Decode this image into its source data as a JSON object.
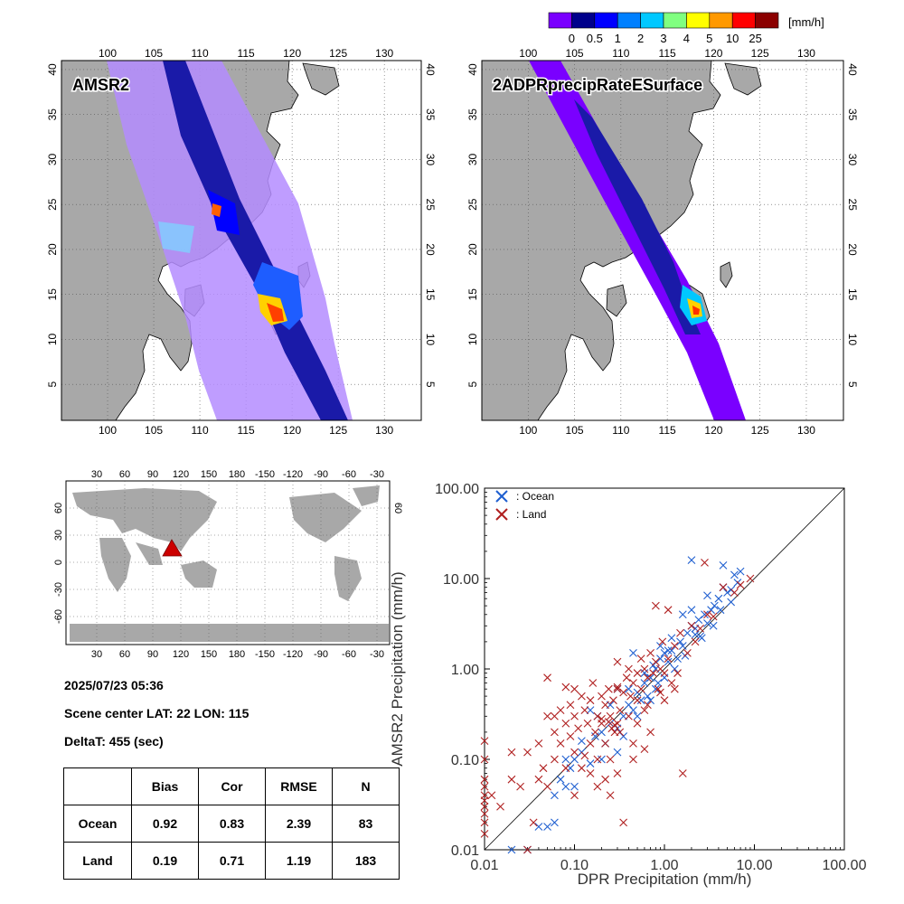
{
  "colorbar": {
    "unit": "[mm/h]",
    "colors": [
      "#7a00ff",
      "#00008b",
      "#0000ff",
      "#0080ff",
      "#00c8ff",
      "#80ff80",
      "#ffff00",
      "#ff9900",
      "#ff0000",
      "#8b0000"
    ],
    "ticks": [
      "0",
      "0.5",
      "1",
      "2",
      "3",
      "4",
      "5",
      "10",
      "25"
    ]
  },
  "maps": {
    "lon_ticks": [
      "100",
      "105",
      "110",
      "115",
      "120",
      "125",
      "130"
    ],
    "lat_ticks": [
      "5",
      "10",
      "15",
      "20",
      "25",
      "30",
      "35",
      "40"
    ],
    "left_label": "AMSR2",
    "right_label": "2ADPRprecipRateESurface",
    "land_color": "#a8a8a8"
  },
  "world": {
    "top_ticks": [
      "30",
      "60",
      "90",
      "120",
      "150",
      "180",
      "-150",
      "-120",
      "-90",
      "-60",
      "-30"
    ],
    "bottom_ticks": [
      "30",
      "60",
      "90",
      "120",
      "150",
      "180",
      "-150",
      "-120",
      "-90",
      "-60",
      "-30"
    ],
    "lat_ticks": [
      "60",
      "30",
      "0",
      "-30",
      "-60"
    ],
    "right_lat_ticks": [
      "60"
    ],
    "marker_color": "#cc0000"
  },
  "scene": {
    "date": "2025/07/23 05:36",
    "center": "Scene center LAT: 22   LON: 115",
    "deltat": "DeltaT:  455 (sec)"
  },
  "stats": {
    "headers": [
      "",
      "Bias",
      "Cor",
      "RMSE",
      "N"
    ],
    "rows": [
      [
        "Ocean",
        "0.92",
        "0.83",
        "2.39",
        "83"
      ],
      [
        "Land",
        "0.19",
        "0.71",
        "1.19",
        "183"
      ]
    ]
  },
  "chart_data": {
    "type": "scatter",
    "xscale": "log",
    "yscale": "log",
    "xlim": [
      0.01,
      100
    ],
    "ylim": [
      0.01,
      100
    ],
    "xlabel": "DPR Precipitation (mm/h)",
    "ylabel": "AMSR2 Precipitation (mm/h)",
    "x_ticks": [
      "0.01",
      "0.10",
      "1.00",
      "10.00",
      "100.00"
    ],
    "y_ticks": [
      "0.01",
      "0.10",
      "1.00",
      "10.00",
      "100.00"
    ],
    "legend_placement": "top-left",
    "series": [
      {
        "name": ": Ocean",
        "color": "#1f5fd0",
        "points": [
          [
            0.02,
            0.01
          ],
          [
            0.03,
            0.01
          ],
          [
            0.04,
            0.018
          ],
          [
            0.05,
            0.018
          ],
          [
            0.06,
            0.04
          ],
          [
            0.07,
            0.06
          ],
          [
            0.08,
            0.05
          ],
          [
            0.09,
            0.08
          ],
          [
            0.1,
            0.1
          ],
          [
            0.12,
            0.12
          ],
          [
            0.15,
            0.09
          ],
          [
            0.17,
            0.18
          ],
          [
            0.2,
            0.2
          ],
          [
            0.22,
            0.15
          ],
          [
            0.25,
            0.25
          ],
          [
            0.3,
            0.22
          ],
          [
            0.35,
            0.3
          ],
          [
            0.4,
            0.4
          ],
          [
            0.45,
            0.35
          ],
          [
            0.5,
            0.55
          ],
          [
            0.55,
            0.45
          ],
          [
            0.6,
            0.7
          ],
          [
            0.65,
            0.5
          ],
          [
            0.7,
            0.8
          ],
          [
            0.75,
            1.1
          ],
          [
            0.8,
            1.0
          ],
          [
            0.85,
            0.7
          ],
          [
            0.9,
            1.3
          ],
          [
            1.0,
            1.5
          ],
          [
            1.1,
            1.2
          ],
          [
            1.2,
            1.6
          ],
          [
            1.3,
            1.0
          ],
          [
            1.5,
            2.0
          ],
          [
            1.6,
            1.8
          ],
          [
            1.8,
            2.5
          ],
          [
            2.0,
            3.0
          ],
          [
            2.2,
            2.4
          ],
          [
            2.4,
            3.5
          ],
          [
            2.6,
            2.2
          ],
          [
            2.8,
            4.0
          ],
          [
            3.0,
            3.2
          ],
          [
            3.3,
            4.5
          ],
          [
            3.6,
            5.0
          ],
          [
            4.0,
            6.0
          ],
          [
            4.5,
            8.0
          ],
          [
            5.0,
            7.0
          ],
          [
            5.5,
            5.5
          ],
          [
            6.0,
            11.0
          ],
          [
            7.0,
            12.0
          ],
          [
            4.5,
            14.0
          ],
          [
            2.0,
            16.0
          ],
          [
            3.0,
            6.5
          ],
          [
            2.0,
            4.5
          ],
          [
            1.6,
            4.0
          ],
          [
            2.5,
            2.3
          ],
          [
            1.2,
            2.2
          ],
          [
            0.9,
            1.8
          ],
          [
            0.6,
            0.9
          ],
          [
            0.4,
            0.6
          ],
          [
            0.3,
            0.12
          ],
          [
            0.25,
            0.4
          ],
          [
            0.18,
            0.3
          ],
          [
            0.12,
            0.16
          ],
          [
            0.08,
            0.1
          ],
          [
            0.06,
            0.02
          ],
          [
            0.2,
            0.1
          ],
          [
            0.35,
            0.18
          ],
          [
            0.5,
            0.3
          ],
          [
            0.7,
            0.45
          ],
          [
            1.0,
            0.8
          ],
          [
            1.4,
            1.3
          ],
          [
            1.7,
            1.4
          ],
          [
            0.45,
            1.5
          ],
          [
            0.3,
            0.6
          ],
          [
            0.15,
            0.35
          ],
          [
            0.1,
            0.05
          ],
          [
            0.8,
            0.6
          ],
          [
            1.1,
            1.6
          ],
          [
            2.2,
            2.8
          ],
          [
            3.5,
            3.0
          ],
          [
            4.2,
            4.5
          ],
          [
            5.5,
            7.5
          ],
          [
            6.5,
            9.0
          ]
        ]
      },
      {
        "name": ": Land",
        "color": "#b02020",
        "points": [
          [
            0.01,
            0.16
          ],
          [
            0.01,
            0.1
          ],
          [
            0.01,
            0.06
          ],
          [
            0.01,
            0.05
          ],
          [
            0.01,
            0.04
          ],
          [
            0.01,
            0.035
          ],
          [
            0.01,
            0.03
          ],
          [
            0.01,
            0.025
          ],
          [
            0.01,
            0.02
          ],
          [
            0.01,
            0.015
          ],
          [
            0.012,
            0.04
          ],
          [
            0.015,
            0.03
          ],
          [
            0.02,
            0.06
          ],
          [
            0.025,
            0.05
          ],
          [
            0.03,
            0.12
          ],
          [
            0.03,
            0.01
          ],
          [
            0.035,
            0.02
          ],
          [
            0.04,
            0.15
          ],
          [
            0.045,
            0.08
          ],
          [
            0.05,
            0.05
          ],
          [
            0.05,
            0.3
          ],
          [
            0.06,
            0.2
          ],
          [
            0.06,
            0.1
          ],
          [
            0.07,
            0.15
          ],
          [
            0.07,
            0.35
          ],
          [
            0.08,
            0.25
          ],
          [
            0.08,
            0.08
          ],
          [
            0.09,
            0.4
          ],
          [
            0.09,
            0.18
          ],
          [
            0.1,
            0.3
          ],
          [
            0.1,
            0.6
          ],
          [
            0.1,
            0.12
          ],
          [
            0.11,
            0.22
          ],
          [
            0.12,
            0.5
          ],
          [
            0.12,
            0.08
          ],
          [
            0.13,
            0.35
          ],
          [
            0.14,
            0.25
          ],
          [
            0.15,
            0.45
          ],
          [
            0.15,
            0.15
          ],
          [
            0.16,
            0.7
          ],
          [
            0.17,
            0.2
          ],
          [
            0.18,
            0.3
          ],
          [
            0.18,
            0.05
          ],
          [
            0.2,
            0.5
          ],
          [
            0.2,
            0.25
          ],
          [
            0.22,
            0.4
          ],
          [
            0.22,
            0.15
          ],
          [
            0.24,
            0.6
          ],
          [
            0.25,
            0.3
          ],
          [
            0.25,
            0.1
          ],
          [
            0.27,
            0.45
          ],
          [
            0.28,
            0.2
          ],
          [
            0.3,
            1.2
          ],
          [
            0.3,
            0.6
          ],
          [
            0.3,
            0.07
          ],
          [
            0.32,
            0.35
          ],
          [
            0.35,
            0.55
          ],
          [
            0.35,
            0.02
          ],
          [
            0.38,
            0.8
          ],
          [
            0.4,
            0.3
          ],
          [
            0.4,
            1.0
          ],
          [
            0.42,
            0.5
          ],
          [
            0.45,
            0.7
          ],
          [
            0.45,
            0.15
          ],
          [
            0.5,
            0.9
          ],
          [
            0.5,
            0.45
          ],
          [
            0.55,
            1.3
          ],
          [
            0.55,
            0.6
          ],
          [
            0.6,
            0.35
          ],
          [
            0.6,
            1.0
          ],
          [
            0.65,
            0.8
          ],
          [
            0.7,
            1.5
          ],
          [
            0.7,
            0.2
          ],
          [
            0.75,
            0.9
          ],
          [
            0.8,
            5.0
          ],
          [
            0.8,
            1.2
          ],
          [
            0.85,
            0.6
          ],
          [
            0.9,
            1.0
          ],
          [
            0.95,
            2.0
          ],
          [
            1.0,
            0.9
          ],
          [
            1.0,
            0.45
          ],
          [
            1.1,
            4.5
          ],
          [
            1.1,
            1.3
          ],
          [
            1.2,
            0.7
          ],
          [
            1.3,
            1.8
          ],
          [
            1.4,
            0.9
          ],
          [
            1.5,
            2.5
          ],
          [
            1.6,
            0.07
          ],
          [
            1.8,
            1.5
          ],
          [
            2.0,
            3.0
          ],
          [
            2.2,
            2.0
          ],
          [
            2.5,
            2.8
          ],
          [
            2.8,
            15.0
          ],
          [
            3.0,
            4.0
          ],
          [
            3.5,
            3.8
          ],
          [
            4.5,
            8.0
          ],
          [
            6.0,
            7.0
          ],
          [
            7.0,
            8.5
          ],
          [
            9.0,
            10.0
          ],
          [
            0.3,
            0.25
          ],
          [
            0.28,
            0.24
          ],
          [
            0.26,
            0.22
          ],
          [
            0.24,
            0.26
          ],
          [
            0.32,
            0.2
          ],
          [
            0.2,
            0.28
          ],
          [
            0.08,
            0.63
          ],
          [
            0.3,
            0.63
          ],
          [
            0.05,
            0.8
          ],
          [
            0.02,
            0.12
          ],
          [
            0.04,
            0.06
          ],
          [
            0.06,
            0.3
          ],
          [
            0.13,
            0.11
          ],
          [
            0.18,
            0.1
          ],
          [
            0.22,
            0.06
          ],
          [
            0.5,
            0.25
          ],
          [
            0.65,
            0.4
          ],
          [
            0.9,
            0.55
          ],
          [
            1.3,
            0.6
          ],
          [
            0.45,
            0.1
          ],
          [
            0.15,
            0.07
          ],
          [
            0.1,
            0.04
          ],
          [
            0.25,
            0.04
          ],
          [
            0.6,
            0.13
          ]
        ]
      }
    ]
  }
}
